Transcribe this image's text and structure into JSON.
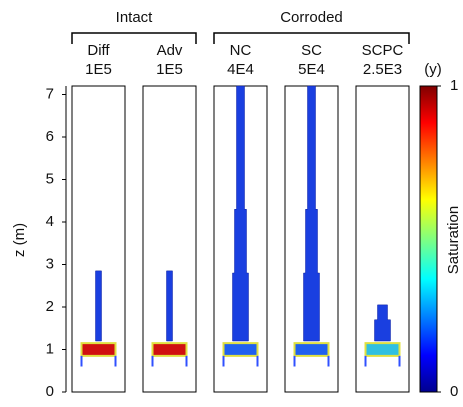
{
  "chart_data": {
    "type": "panels",
    "ylabel": "z (m)",
    "ylim": [
      0,
      7.2
    ],
    "yticks": [
      0,
      1,
      2,
      3,
      4,
      5,
      6,
      7
    ],
    "groups": [
      {
        "label": "Intact",
        "panels": [
          0,
          1
        ]
      },
      {
        "label": "Corroded",
        "panels": [
          2,
          3,
          4
        ]
      }
    ],
    "panels": [
      {
        "name": "Diff",
        "time": "1E5",
        "plume_top": 2.85
      },
      {
        "name": "Adv",
        "time": "1E5",
        "plume_top": 2.85
      },
      {
        "name": "NC",
        "time": "4E4",
        "plume_top": 7.2
      },
      {
        "name": "SC",
        "time": "5E4",
        "plume_top": 7.2
      },
      {
        "name": "SCPC",
        "time": "2.5E3",
        "plume_top": 2.05
      }
    ],
    "time_unit": "(y)",
    "colorbar": {
      "label": "Saturation",
      "lim": [
        0,
        1
      ],
      "ticks": [
        0,
        1
      ]
    }
  }
}
